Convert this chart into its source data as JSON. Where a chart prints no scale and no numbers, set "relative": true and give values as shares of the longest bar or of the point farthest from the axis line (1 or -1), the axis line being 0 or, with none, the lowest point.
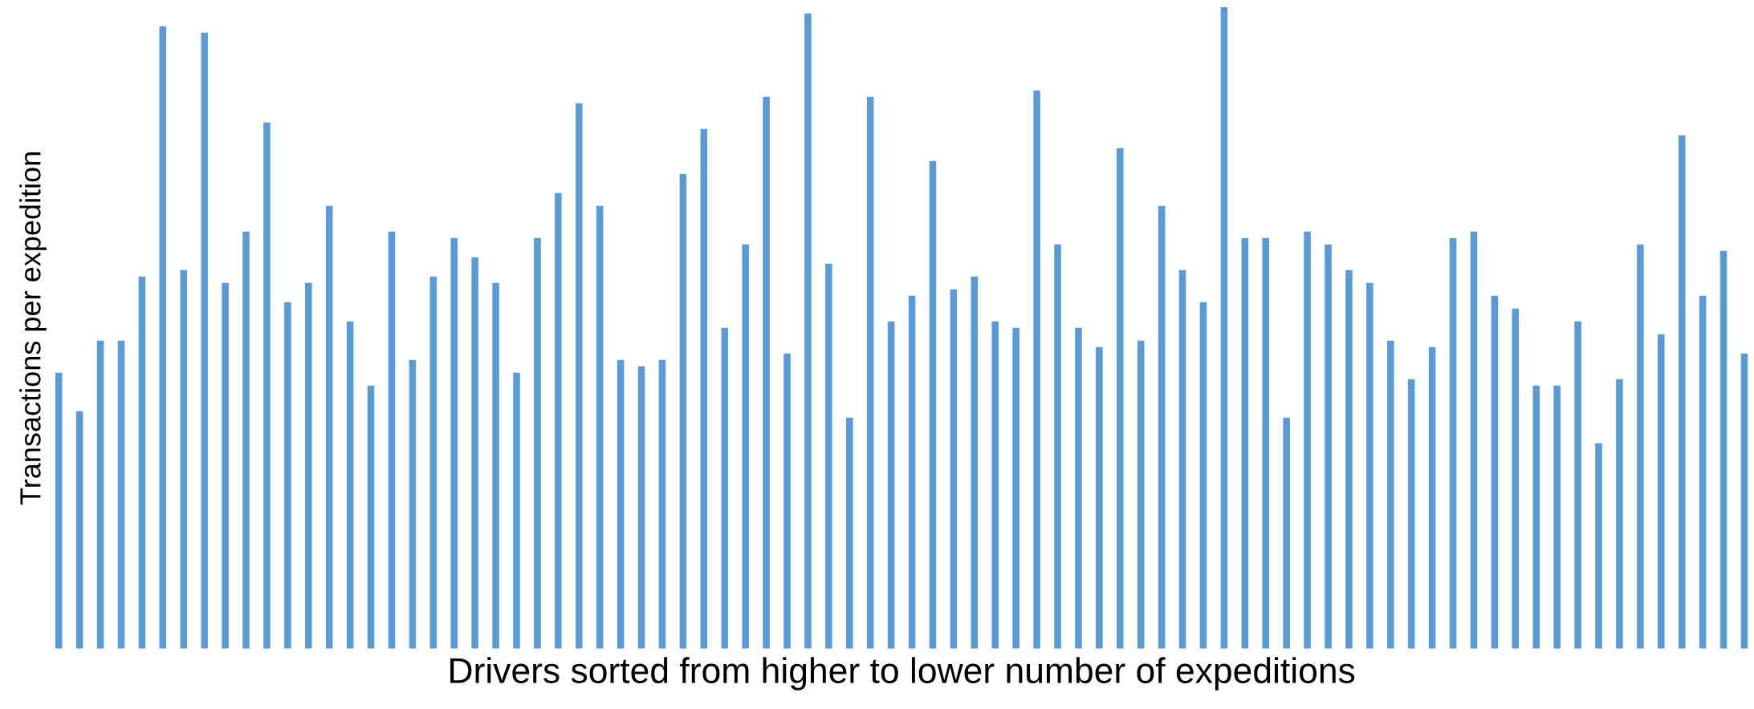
{
  "chart_data": {
    "type": "bar",
    "relative": true,
    "color": "#5b9bd5",
    "xlabel": "Drivers sorted from higher to lower number of expeditions",
    "ylabel": "Transactions per expedition",
    "categories": [
      null,
      null,
      null,
      null,
      null,
      null,
      null,
      null,
      null,
      null,
      null,
      null,
      null,
      null,
      null,
      null,
      null,
      null,
      null,
      null,
      null,
      null,
      null,
      null,
      null,
      null,
      null,
      null,
      null,
      null,
      null,
      null,
      null,
      null,
      null,
      null,
      null,
      null,
      null,
      null,
      null,
      null,
      null,
      null,
      null,
      null,
      null,
      null,
      null,
      null,
      null,
      null,
      null,
      null,
      null,
      null,
      null,
      null,
      null,
      null,
      null,
      null,
      null,
      null,
      null,
      null,
      null,
      null,
      null,
      null,
      null,
      null,
      null,
      null,
      null,
      null,
      null,
      null,
      null,
      null,
      null,
      null
    ],
    "values": [
      0.43,
      0.37,
      0.48,
      0.48,
      0.58,
      0.97,
      0.59,
      0.96,
      0.57,
      0.65,
      0.82,
      0.54,
      0.57,
      0.69,
      0.51,
      0.41,
      0.65,
      0.45,
      0.58,
      0.64,
      0.61,
      0.57,
      0.43,
      0.64,
      0.71,
      0.85,
      0.69,
      0.45,
      0.44,
      0.45,
      0.74,
      0.81,
      0.5,
      0.63,
      0.86,
      0.46,
      0.99,
      0.6,
      0.36,
      0.86,
      0.51,
      0.55,
      0.76,
      0.56,
      0.58,
      0.51,
      0.5,
      0.87,
      0.63,
      0.5,
      0.47,
      0.78,
      0.48,
      0.69,
      0.59,
      0.54,
      1,
      0.64,
      0.64,
      0.36,
      0.65,
      0.63,
      0.59,
      0.57,
      0.48,
      0.42,
      0.47,
      0.64,
      0.65,
      0.55,
      0.53,
      0.41,
      0.41,
      0.51,
      0.32,
      0.42,
      0.63,
      0.49,
      0.8,
      0.55,
      0.62,
      0.46
    ],
    "grid": false,
    "legend": false
  }
}
